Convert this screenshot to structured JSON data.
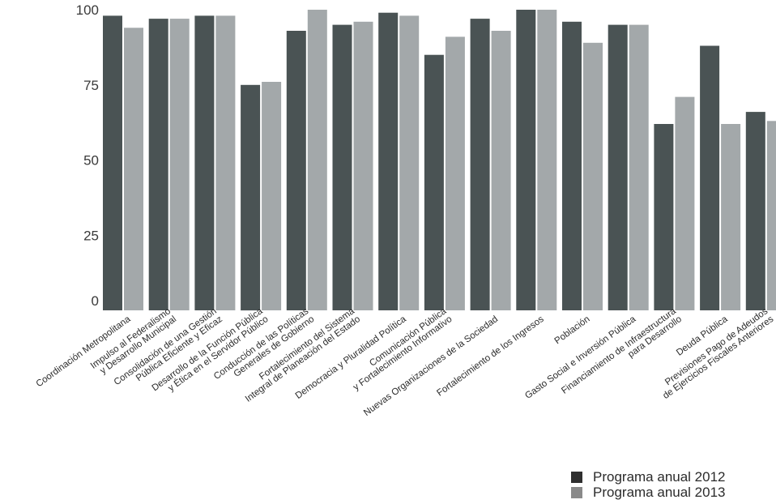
{
  "chart_data": {
    "type": "bar",
    "title": "",
    "xlabel": "",
    "ylabel": "",
    "ylim": [
      0,
      100
    ],
    "yticks": [
      "0",
      "25",
      "50",
      "75",
      "100"
    ],
    "grid": false,
    "legend_position": "bottom-right",
    "categories": [
      [
        "Coordinación Metropolitana"
      ],
      [
        "Impulso al Federalismo",
        "y Desarrollo Municipal"
      ],
      [
        "Consolidación de una Gestión",
        "Pública Eficiente y Eficaz"
      ],
      [
        "Desarrollo de la Función Pública",
        "y Ética en el Servidor Público"
      ],
      [
        "Conducción de las Políticas",
        "Generales de Gobierno"
      ],
      [
        "Fortalecimiento del Sistema",
        "Integral de Planeación del Estado"
      ],
      [
        "Democracia y Pluralidad Política"
      ],
      [
        "Comunicación Pública",
        "y Fortalecimiento Informativo"
      ],
      [
        "Nuevas Organizaciones de la Sociedad"
      ],
      [
        "Fortalecimiento de los Ingresos"
      ],
      [
        "Población"
      ],
      [
        "Gasto Social e Inversión Pública"
      ],
      [
        "Financiamiento de Infraestructura",
        "para Desarrollo"
      ],
      [
        "Deuda Pública"
      ],
      [
        "Previsiones Pago de Adeudos",
        "de Ejercicios Fiscales Anteriores"
      ]
    ],
    "series": [
      {
        "name": "Programa anual 2012",
        "color": "#4a5354",
        "values": [
          98,
          97,
          98,
          75,
          93,
          95,
          99,
          85,
          97,
          100,
          96,
          95,
          62,
          88,
          66
        ]
      },
      {
        "name": "Programa anual 2013",
        "color": "#a3a8aa",
        "values": [
          94,
          97,
          98,
          76,
          100,
          96,
          98,
          91,
          93,
          100,
          89,
          95,
          71,
          62,
          63
        ]
      }
    ]
  },
  "legend": {
    "items": [
      {
        "label": "Programa anual 2012",
        "color": "#2f2f2f"
      },
      {
        "label": "Programa anual 2013",
        "color": "#8a8a8a"
      }
    ]
  }
}
